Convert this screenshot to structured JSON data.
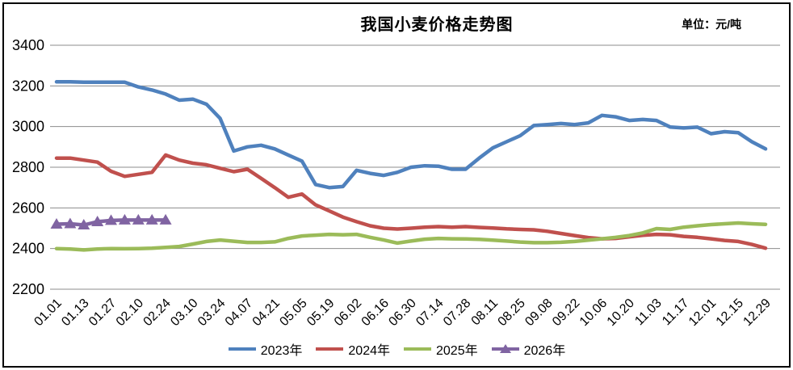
{
  "chart_data": {
    "type": "line",
    "title": "我国小麦价格走势图",
    "unit_label": "单位：元/吨",
    "ylim": [
      2200,
      3400
    ],
    "y_ticks": [
      3400,
      3200,
      3000,
      2800,
      2600,
      2400,
      2200
    ],
    "grid": true,
    "legend_position": "bottom",
    "points_per_tick": 2,
    "x_tick_labels": [
      "01.01",
      "01.13",
      "01.27",
      "02.10",
      "02.24",
      "03.10",
      "03.24",
      "04.07",
      "04.21",
      "05.05",
      "05.19",
      "06.02",
      "06.16",
      "06.30",
      "07.14",
      "07.28",
      "08.11",
      "08.25",
      "09.08",
      "09.22",
      "10.06",
      "10.20",
      "11.03",
      "11.17",
      "12.01",
      "12.15",
      "12.29"
    ],
    "series": [
      {
        "name": "2023年",
        "color": "#4F81BD",
        "marker": "none",
        "values": [
          3220,
          3220,
          3218,
          3218,
          3218,
          3218,
          3195,
          3180,
          3160,
          3130,
          3135,
          3110,
          3040,
          2880,
          2900,
          2908,
          2890,
          2860,
          2830,
          2715,
          2700,
          2705,
          2785,
          2770,
          2760,
          2775,
          2800,
          2807,
          2805,
          2790,
          2790,
          2845,
          2895,
          2925,
          2955,
          3005,
          3010,
          3015,
          3010,
          3018,
          3055,
          3048,
          3030,
          3035,
          3030,
          2998,
          2993,
          2997,
          2965,
          2975,
          2970,
          2925,
          2890
        ]
      },
      {
        "name": "2024年",
        "color": "#C0504D",
        "marker": "none",
        "values": [
          2845,
          2845,
          2835,
          2825,
          2780,
          2755,
          2765,
          2775,
          2860,
          2835,
          2820,
          2812,
          2795,
          2778,
          2790,
          2745,
          2700,
          2652,
          2668,
          2615,
          2585,
          2555,
          2532,
          2512,
          2500,
          2496,
          2500,
          2505,
          2508,
          2505,
          2508,
          2504,
          2501,
          2497,
          2494,
          2492,
          2485,
          2474,
          2464,
          2454,
          2448,
          2450,
          2458,
          2465,
          2470,
          2468,
          2460,
          2455,
          2448,
          2440,
          2435,
          2420,
          2402
        ]
      },
      {
        "name": "2025年",
        "color": "#9BBB59",
        "marker": "none",
        "values": [
          2400,
          2398,
          2393,
          2398,
          2400,
          2399,
          2400,
          2402,
          2406,
          2410,
          2422,
          2435,
          2442,
          2436,
          2430,
          2430,
          2433,
          2450,
          2462,
          2466,
          2470,
          2468,
          2470,
          2455,
          2442,
          2427,
          2437,
          2446,
          2450,
          2448,
          2447,
          2445,
          2441,
          2437,
          2432,
          2429,
          2429,
          2431,
          2435,
          2441,
          2448,
          2455,
          2464,
          2477,
          2498,
          2494,
          2505,
          2512,
          2518,
          2522,
          2526,
          2522,
          2519
        ]
      },
      {
        "name": "2026年",
        "color": "#8064A2",
        "marker": "triangle",
        "values": [
          2520,
          2522,
          2516,
          2532,
          2538,
          2540,
          2540,
          2540,
          2540
        ]
      }
    ]
  }
}
